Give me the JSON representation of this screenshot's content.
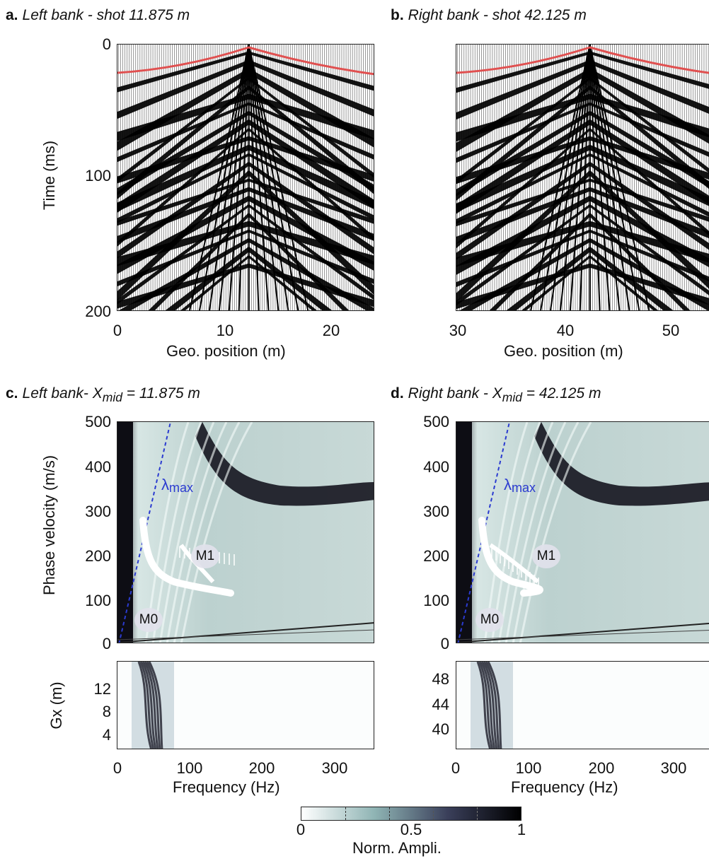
{
  "panels": {
    "a": {
      "letter": "a.",
      "title": "Left bank - shot 11.875 m"
    },
    "b": {
      "letter": "b.",
      "title": "Right bank - shot 42.125 m"
    },
    "c": {
      "letter": "c.",
      "title_prefix": "Left bank- X",
      "title_sub": "mid",
      "title_suffix": " = 11.875 m"
    },
    "d": {
      "letter": "d.",
      "title_prefix": "Right bank - X",
      "title_sub": "mid",
      "title_suffix": " = 42.125 m"
    }
  },
  "axes": {
    "time_label": "Time (ms)",
    "geo_label": "Geo. position (m)",
    "phase_label": "Phase velocity (m/s)",
    "gx_label": "Gx (m)",
    "freq_label": "Frequency (Hz)"
  },
  "ticks": {
    "time": [
      "0",
      "100",
      "200"
    ],
    "geo_a": [
      "0",
      "10",
      "20"
    ],
    "geo_b": [
      "30",
      "40",
      "50"
    ],
    "velocity": [
      "500",
      "400",
      "300",
      "200",
      "100",
      "0"
    ],
    "gx_c": [
      "12",
      "8",
      "4"
    ],
    "gx_d": [
      "48",
      "44",
      "40"
    ],
    "freq": [
      "0",
      "100",
      "200",
      "300"
    ]
  },
  "annotations": {
    "mode0": "M0",
    "mode1": "M1",
    "lambda": "λ",
    "lambda_sub": "max"
  },
  "colorbar": {
    "label": "Norm. Ampli.",
    "ticks": [
      "0",
      "0.5",
      "1"
    ],
    "colors": [
      "#ffffff",
      "#8fb4b4",
      "#3a3f5a",
      "#000000"
    ]
  },
  "colors": {
    "pick_line": "#e05050",
    "lambda_line": "#2b3bd0",
    "wiggle_fill": "#000000"
  }
}
